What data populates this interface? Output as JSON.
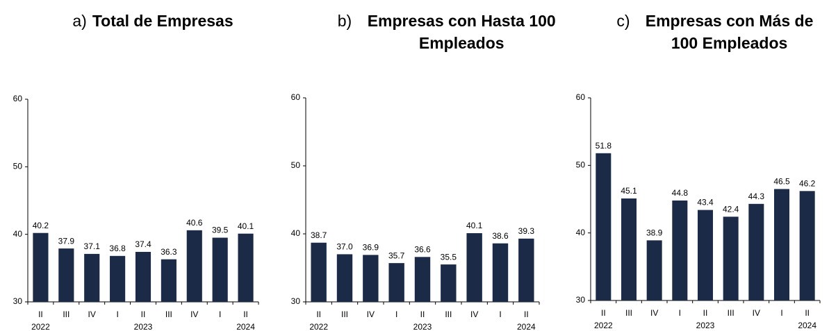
{
  "chart_data": [
    {
      "type": "bar",
      "label": "a)",
      "title": "Total de Empresas",
      "categories": [
        "II",
        "III",
        "IV",
        "I",
        "II",
        "III",
        "IV",
        "I",
        "II"
      ],
      "group_labels": [
        "2022",
        null,
        null,
        null,
        "2023",
        null,
        null,
        null,
        "2024"
      ],
      "values": [
        40.2,
        37.9,
        37.1,
        36.8,
        37.4,
        36.3,
        40.6,
        39.5,
        40.1
      ],
      "value_labels": [
        "40.2",
        "37.9",
        "37.1",
        "36.8",
        "37.4",
        "36.3",
        "40.6",
        "39.5",
        "40.1"
      ],
      "color": "#1b2a47",
      "ylim": [
        30,
        60
      ],
      "yticks": [
        30,
        40,
        50,
        60
      ]
    },
    {
      "type": "bar",
      "label": "b)",
      "title": "Empresas con Hasta 100 Empleados",
      "categories": [
        "II",
        "III",
        "IV",
        "I",
        "II",
        "III",
        "IV",
        "I",
        "II"
      ],
      "group_labels": [
        "2022",
        null,
        null,
        null,
        "2023",
        null,
        null,
        null,
        "2024"
      ],
      "values": [
        38.7,
        37.0,
        36.9,
        35.7,
        36.6,
        35.5,
        40.1,
        38.6,
        39.3
      ],
      "value_labels": [
        "38.7",
        "37.0",
        "36.9",
        "35.7",
        "36.6",
        "35.5",
        "40.1",
        "38.6",
        "39.3"
      ],
      "color": "#1b2a47",
      "ylim": [
        30,
        60
      ],
      "yticks": [
        30,
        40,
        50,
        60
      ]
    },
    {
      "type": "bar",
      "label": "c)",
      "title": "Empresas con Más de 100 Empleados",
      "categories": [
        "II",
        "III",
        "IV",
        "I",
        "II",
        "III",
        "IV",
        "I",
        "II"
      ],
      "group_labels": [
        "2022",
        null,
        null,
        null,
        "2023",
        null,
        null,
        null,
        "2024"
      ],
      "values": [
        51.8,
        45.1,
        38.9,
        44.8,
        43.4,
        42.4,
        44.3,
        46.5,
        46.2
      ],
      "value_labels": [
        "51.8",
        "45.1",
        "38.9",
        "44.8",
        "43.4",
        "42.4",
        "44.3",
        "46.5",
        "46.2"
      ],
      "color": "#1b2a47",
      "ylim": [
        30,
        60
      ],
      "yticks": [
        30,
        40,
        50,
        60
      ]
    }
  ]
}
